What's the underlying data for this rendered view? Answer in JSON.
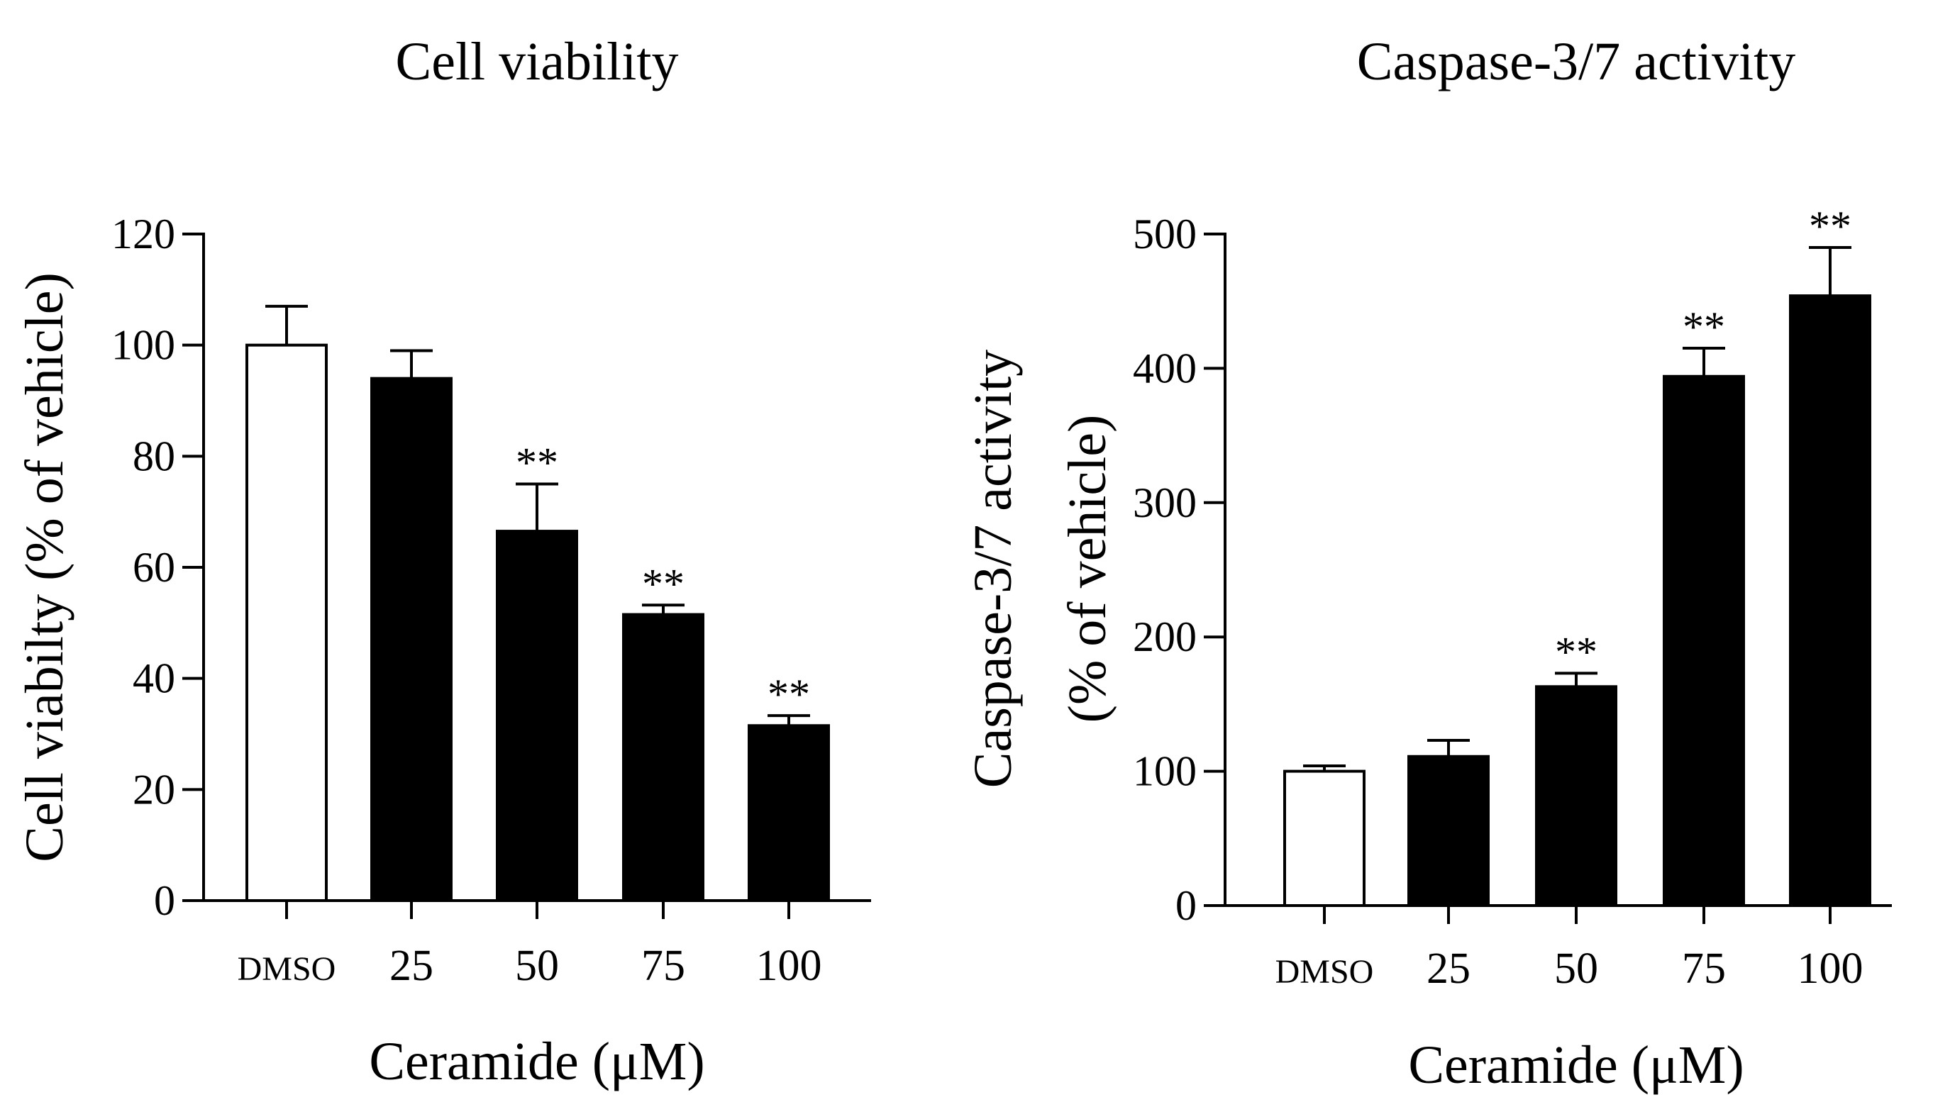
{
  "chart_data": [
    {
      "type": "bar",
      "title": "Cell viability",
      "xlabel": "Ceramide (μM)",
      "ylabel": "Cell viabilty (% of vehicle)",
      "ylabel_lines": [
        "Cell viabilty (% of vehicle)"
      ],
      "categories": [
        "DMSO",
        "25",
        "50",
        "75",
        "100"
      ],
      "values": [
        100,
        94,
        66.5,
        51.5,
        31.5
      ],
      "errors": [
        7,
        5,
        8.5,
        1.7,
        1.8
      ],
      "fills": [
        "#ffffff",
        "#000000",
        "#000000",
        "#000000",
        "#000000"
      ],
      "significance": [
        "",
        "",
        "**",
        "**",
        "**"
      ],
      "ylim": [
        0,
        120
      ],
      "yticks": [
        0,
        20,
        40,
        60,
        80,
        100,
        120
      ],
      "ytick_labels": [
        "0",
        "20",
        "40",
        "60",
        "80",
        "100",
        "120"
      ]
    },
    {
      "type": "bar",
      "title": "Caspase-3/7 activity",
      "xlabel": "Ceramide (μM)",
      "ylabel": "Caspase-3/7 activity (% of vehicle)",
      "ylabel_lines": [
        "Caspase-3/7 activity",
        "(% of vehicle)"
      ],
      "categories": [
        "DMSO",
        "25",
        "50",
        "75",
        "100"
      ],
      "values": [
        100,
        111,
        163,
        394,
        454
      ],
      "errors": [
        4,
        12,
        10,
        21,
        36
      ],
      "fills": [
        "#ffffff",
        "#000000",
        "#000000",
        "#000000",
        "#000000"
      ],
      "significance": [
        "",
        "",
        "**",
        "**",
        "**"
      ],
      "ylim": [
        0,
        500
      ],
      "yticks": [
        0,
        100,
        200,
        300,
        400,
        500
      ],
      "ytick_labels": [
        "0",
        "100",
        "200",
        "300",
        "400",
        "500"
      ]
    }
  ]
}
